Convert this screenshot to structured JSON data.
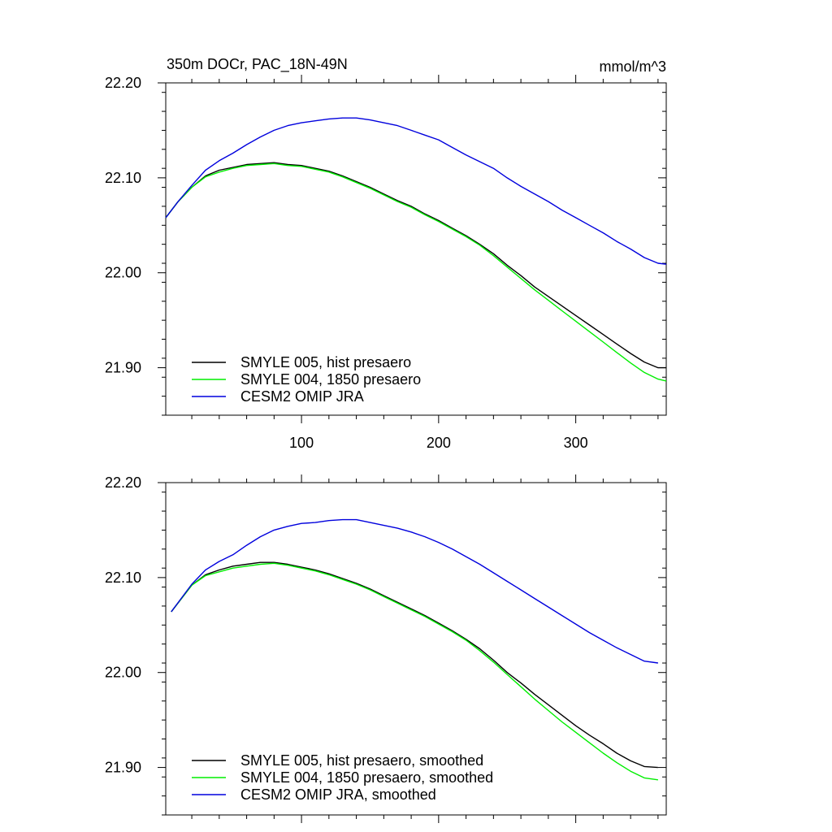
{
  "chart_data": [
    {
      "type": "line",
      "panel": "top",
      "title": "350m DOCr, PAC_18N-49N",
      "units_label": "mmol/m^3",
      "xlabel": "",
      "ylabel": "",
      "xlim": [
        1,
        366
      ],
      "ylim": [
        21.85,
        22.2
      ],
      "x_ticks": [
        100,
        200,
        300
      ],
      "x_tick_labels": [
        "100",
        "200",
        "300"
      ],
      "y_ticks": [
        21.9,
        22.0,
        22.1,
        22.2
      ],
      "y_tick_labels": [
        "21.90",
        "22.00",
        "22.10",
        "22.20"
      ],
      "grid": false,
      "legend_position": "bottom-left",
      "series": [
        {
          "name": "SMYLE 005, hist presaero",
          "color": "#000000",
          "x": [
            1,
            10,
            20,
            30,
            40,
            50,
            60,
            70,
            80,
            90,
            100,
            110,
            120,
            130,
            140,
            150,
            160,
            170,
            180,
            190,
            200,
            210,
            220,
            230,
            240,
            250,
            260,
            270,
            280,
            290,
            300,
            310,
            320,
            330,
            340,
            350,
            360,
            366
          ],
          "y": [
            22.058,
            22.075,
            22.09,
            22.102,
            22.108,
            22.111,
            22.114,
            22.115,
            22.116,
            22.114,
            22.113,
            22.11,
            22.107,
            22.102,
            22.096,
            22.09,
            22.083,
            22.076,
            22.07,
            22.062,
            22.055,
            22.047,
            22.039,
            22.03,
            22.02,
            22.008,
            21.997,
            21.985,
            21.975,
            21.965,
            21.955,
            21.945,
            21.935,
            21.925,
            21.915,
            21.906,
            21.9,
            21.9
          ]
        },
        {
          "name": "SMYLE 004, 1850 presaero",
          "color": "#00ee00",
          "x": [
            1,
            10,
            20,
            30,
            40,
            50,
            60,
            70,
            80,
            90,
            100,
            110,
            120,
            130,
            140,
            150,
            160,
            170,
            180,
            190,
            200,
            210,
            220,
            230,
            240,
            250,
            260,
            270,
            280,
            290,
            300,
            310,
            320,
            330,
            340,
            350,
            360,
            366
          ],
          "y": [
            22.058,
            22.075,
            22.09,
            22.101,
            22.106,
            22.11,
            22.113,
            22.114,
            22.115,
            22.113,
            22.112,
            22.109,
            22.106,
            22.101,
            22.095,
            22.089,
            22.082,
            22.075,
            22.069,
            22.061,
            22.054,
            22.046,
            22.038,
            22.029,
            22.018,
            22.006,
            21.994,
            21.982,
            21.971,
            21.96,
            21.949,
            21.938,
            21.927,
            21.916,
            21.905,
            21.895,
            21.888,
            21.886
          ]
        },
        {
          "name": "CESM2 OMIP JRA",
          "color": "#0000dd",
          "x": [
            1,
            10,
            20,
            30,
            40,
            50,
            60,
            70,
            80,
            90,
            100,
            110,
            120,
            130,
            140,
            150,
            160,
            170,
            180,
            190,
            200,
            210,
            220,
            230,
            240,
            250,
            260,
            270,
            280,
            290,
            300,
            310,
            320,
            330,
            340,
            350,
            360,
            366
          ],
          "y": [
            22.058,
            22.075,
            22.092,
            22.108,
            22.118,
            22.126,
            22.135,
            22.143,
            22.15,
            22.155,
            22.158,
            22.16,
            22.162,
            22.163,
            22.163,
            22.161,
            22.158,
            22.155,
            22.15,
            22.145,
            22.14,
            22.132,
            22.124,
            22.117,
            22.11,
            22.1,
            22.091,
            22.083,
            22.075,
            22.066,
            22.058,
            22.05,
            22.042,
            22.033,
            22.025,
            22.016,
            22.01,
            22.009
          ]
        }
      ]
    },
    {
      "type": "line",
      "panel": "bottom",
      "title": "",
      "xlabel": "",
      "ylabel": "",
      "xlim": [
        1,
        366
      ],
      "ylim": [
        21.85,
        22.2
      ],
      "x_ticks": [
        100,
        200,
        300
      ],
      "y_ticks": [
        21.9,
        22.0,
        22.1,
        22.2
      ],
      "y_tick_labels": [
        "21.90",
        "22.00",
        "22.10",
        "22.20"
      ],
      "grid": false,
      "legend_position": "bottom-left",
      "series": [
        {
          "name": "SMYLE 005, hist presaero, smoothed",
          "color": "#000000",
          "x": [
            5,
            20,
            30,
            40,
            50,
            60,
            70,
            80,
            90,
            100,
            110,
            120,
            130,
            140,
            150,
            160,
            170,
            180,
            190,
            200,
            210,
            220,
            230,
            240,
            250,
            260,
            270,
            280,
            290,
            300,
            310,
            320,
            330,
            340,
            350,
            360
          ],
          "y": [
            22.064,
            22.092,
            22.103,
            22.108,
            22.112,
            22.114,
            22.116,
            22.116,
            22.114,
            22.111,
            22.108,
            22.104,
            22.099,
            22.094,
            22.088,
            22.081,
            22.074,
            22.067,
            22.06,
            22.052,
            22.044,
            22.035,
            22.025,
            22.013,
            22.0,
            21.989,
            21.977,
            21.966,
            21.955,
            21.944,
            21.934,
            21.925,
            21.915,
            21.907,
            21.901,
            21.9
          ]
        },
        {
          "name": "SMYLE 004, 1850 presaero, smoothed",
          "color": "#00ee00",
          "x": [
            5,
            20,
            30,
            40,
            50,
            60,
            70,
            80,
            90,
            100,
            110,
            120,
            130,
            140,
            150,
            160,
            170,
            180,
            190,
            200,
            210,
            220,
            230,
            240,
            250,
            260,
            270,
            280,
            290,
            300,
            310,
            320,
            330,
            340,
            350,
            360
          ],
          "y": [
            22.064,
            22.092,
            22.102,
            22.106,
            22.11,
            22.112,
            22.114,
            22.115,
            22.113,
            22.11,
            22.107,
            22.103,
            22.098,
            22.093,
            22.087,
            22.08,
            22.073,
            22.066,
            22.059,
            22.051,
            22.043,
            22.034,
            22.023,
            22.011,
            21.998,
            21.985,
            21.972,
            21.96,
            21.948,
            21.937,
            21.926,
            21.915,
            21.905,
            21.896,
            21.889,
            21.887
          ]
        },
        {
          "name": "CESM2 OMIP JRA, smoothed",
          "color": "#0000dd",
          "x": [
            5,
            20,
            30,
            40,
            50,
            60,
            70,
            80,
            90,
            100,
            110,
            120,
            130,
            140,
            150,
            160,
            170,
            180,
            190,
            200,
            210,
            220,
            230,
            240,
            250,
            260,
            270,
            280,
            290,
            300,
            310,
            320,
            330,
            340,
            350,
            360
          ],
          "y": [
            22.064,
            22.093,
            22.108,
            22.117,
            22.124,
            22.134,
            22.143,
            22.15,
            22.154,
            22.157,
            22.158,
            22.16,
            22.161,
            22.161,
            22.158,
            22.155,
            22.152,
            22.148,
            22.143,
            22.137,
            22.13,
            22.122,
            22.114,
            22.105,
            22.096,
            22.087,
            22.078,
            22.069,
            22.06,
            22.051,
            22.042,
            22.034,
            22.026,
            22.019,
            22.012,
            22.01
          ]
        }
      ]
    }
  ]
}
